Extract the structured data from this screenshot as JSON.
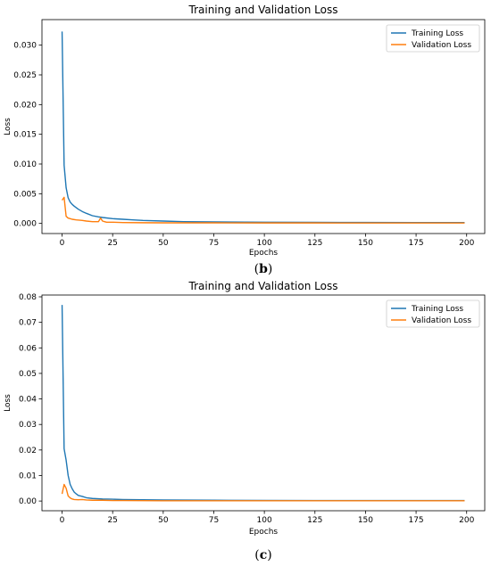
{
  "chart_data": [
    {
      "type": "line",
      "title": "Training and Validation Loss",
      "xlabel": "Epochs",
      "ylabel": "Loss",
      "xlim": [
        -9.95,
        208.95
      ],
      "ylim": [
        -0.0017,
        0.0343
      ],
      "xticks": [
        0,
        25,
        50,
        75,
        100,
        125,
        150,
        175,
        200
      ],
      "xtick_labels": [
        "0",
        "25",
        "50",
        "75",
        "100",
        "125",
        "150",
        "175",
        "200"
      ],
      "yticks": [
        0.0,
        0.005,
        0.01,
        0.015,
        0.02,
        0.025,
        0.03
      ],
      "ytick_labels": [
        "0.000",
        "0.005",
        "0.010",
        "0.015",
        "0.020",
        "0.025",
        "0.030"
      ],
      "legend_position": "upper right",
      "grid": false,
      "caption": "(b)",
      "series": [
        {
          "name": "Training Loss",
          "color": "#1f77b4",
          "x": [
            0,
            1,
            2,
            3,
            4,
            5,
            6,
            8,
            10,
            12,
            15,
            18,
            20,
            25,
            30,
            35,
            40,
            50,
            60,
            75,
            100,
            125,
            150,
            175,
            199
          ],
          "y": [
            0.0323,
            0.0098,
            0.006,
            0.0043,
            0.0036,
            0.0032,
            0.0029,
            0.0024,
            0.002,
            0.0017,
            0.0013,
            0.0011,
            0.001,
            0.0008,
            0.0007,
            0.0006,
            0.0005,
            0.0004,
            0.0003,
            0.00025,
            0.0002,
            0.00018,
            0.00016,
            0.00015,
            0.00014
          ]
        },
        {
          "name": "Validation Loss",
          "color": "#ff7f0e",
          "x": [
            0,
            1,
            2,
            3,
            4,
            5,
            7,
            10,
            12,
            15,
            18,
            19,
            20,
            21,
            22,
            25,
            30,
            40,
            50,
            75,
            100,
            125,
            150,
            175,
            199
          ],
          "y": [
            0.0039,
            0.0044,
            0.0012,
            0.0009,
            0.0008,
            0.0007,
            0.0006,
            0.0005,
            0.0004,
            0.0003,
            0.0003,
            0.0009,
            0.0004,
            0.0003,
            0.0002,
            0.0002,
            0.00015,
            0.00012,
            0.0001,
            0.0001,
            8e-05,
            8e-05,
            7e-05,
            7e-05,
            7e-05
          ]
        }
      ]
    },
    {
      "type": "line",
      "title": "Training and Validation Loss",
      "xlabel": "Epochs",
      "ylabel": "Loss",
      "xlim": [
        -9.95,
        208.95
      ],
      "ylim": [
        -0.0038,
        0.0807
      ],
      "xticks": [
        0,
        25,
        50,
        75,
        100,
        125,
        150,
        175,
        200
      ],
      "xtick_labels": [
        "0",
        "25",
        "50",
        "75",
        "100",
        "125",
        "150",
        "175",
        "200"
      ],
      "yticks": [
        0.0,
        0.01,
        0.02,
        0.03,
        0.04,
        0.05,
        0.06,
        0.07,
        0.08
      ],
      "ytick_labels": [
        "0.00",
        "0.01",
        "0.02",
        "0.03",
        "0.04",
        "0.05",
        "0.06",
        "0.07",
        "0.08"
      ],
      "legend_position": "upper right",
      "grid": false,
      "caption": "(c)",
      "series": [
        {
          "name": "Training Loss",
          "color": "#1f77b4",
          "x": [
            0,
            1,
            2,
            3,
            4,
            5,
            6,
            7,
            8,
            10,
            12,
            15,
            20,
            25,
            30,
            40,
            50,
            75,
            100,
            125,
            150,
            175,
            199
          ],
          "y": [
            0.0768,
            0.0205,
            0.016,
            0.01,
            0.0065,
            0.0048,
            0.0035,
            0.0028,
            0.0022,
            0.0018,
            0.0013,
            0.001,
            0.0008,
            0.0007,
            0.0006,
            0.0005,
            0.0004,
            0.0003,
            0.00025,
            0.0002,
            0.0002,
            0.00018,
            0.00018
          ]
        },
        {
          "name": "Validation Loss",
          "color": "#ff7f0e",
          "x": [
            0,
            1,
            2,
            3,
            4,
            5,
            6,
            8,
            10,
            12,
            15,
            20,
            25,
            30,
            40,
            50,
            75,
            100,
            125,
            150,
            175,
            199
          ],
          "y": [
            0.0028,
            0.0065,
            0.005,
            0.002,
            0.0012,
            0.0008,
            0.0006,
            0.0005,
            0.0006,
            0.0004,
            0.0003,
            0.0003,
            0.0002,
            0.0002,
            0.00015,
            0.0001,
            0.0001,
            0.0001,
            0.0001,
            0.0001,
            0.0001,
            0.0001
          ]
        }
      ]
    }
  ]
}
